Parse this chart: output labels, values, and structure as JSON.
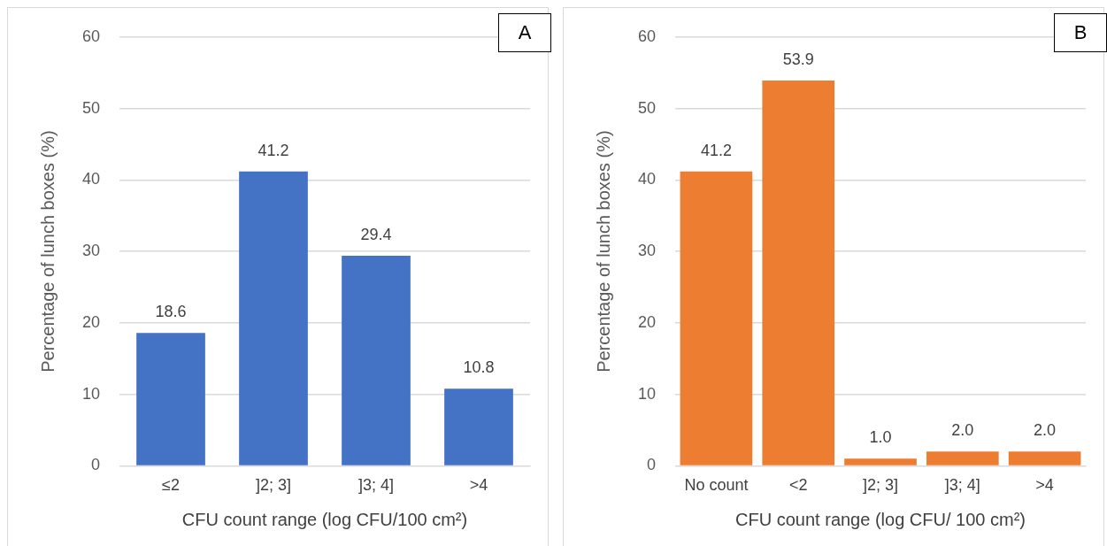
{
  "chart_data": [
    {
      "type": "bar",
      "title": "A",
      "categories": [
        "≤2",
        "]2; 3]",
        "]3; 4]",
        ">4"
      ],
      "values": [
        18.6,
        41.2,
        29.4,
        10.8
      ],
      "value_labels": [
        "18.6",
        "41.2",
        "29.4",
        "10.8"
      ],
      "color": "#4472c4",
      "ylim": [
        0,
        60
      ],
      "yticks": [
        0,
        10,
        20,
        30,
        40,
        50,
        60
      ],
      "grid": "y",
      "xlabel": "CFU count range (log CFU/100 cm²)",
      "ylabel": "Percentage of lunch boxes (%)"
    },
    {
      "type": "bar",
      "title": "B",
      "categories": [
        "No count",
        "<2",
        "]2; 3]",
        "]3; 4]",
        ">4"
      ],
      "values": [
        41.2,
        53.9,
        1.0,
        2.0,
        2.0
      ],
      "value_labels": [
        "41.2",
        "53.9",
        "1.0",
        "2.0",
        "2.0"
      ],
      "color": "#ed7d31",
      "ylim": [
        0,
        60
      ],
      "yticks": [
        0,
        10,
        20,
        30,
        40,
        50,
        60
      ],
      "grid": "y",
      "xlabel": "CFU count range (log CFU/ 100 cm²)",
      "ylabel": "Percentage of lunch boxes (%)"
    }
  ]
}
